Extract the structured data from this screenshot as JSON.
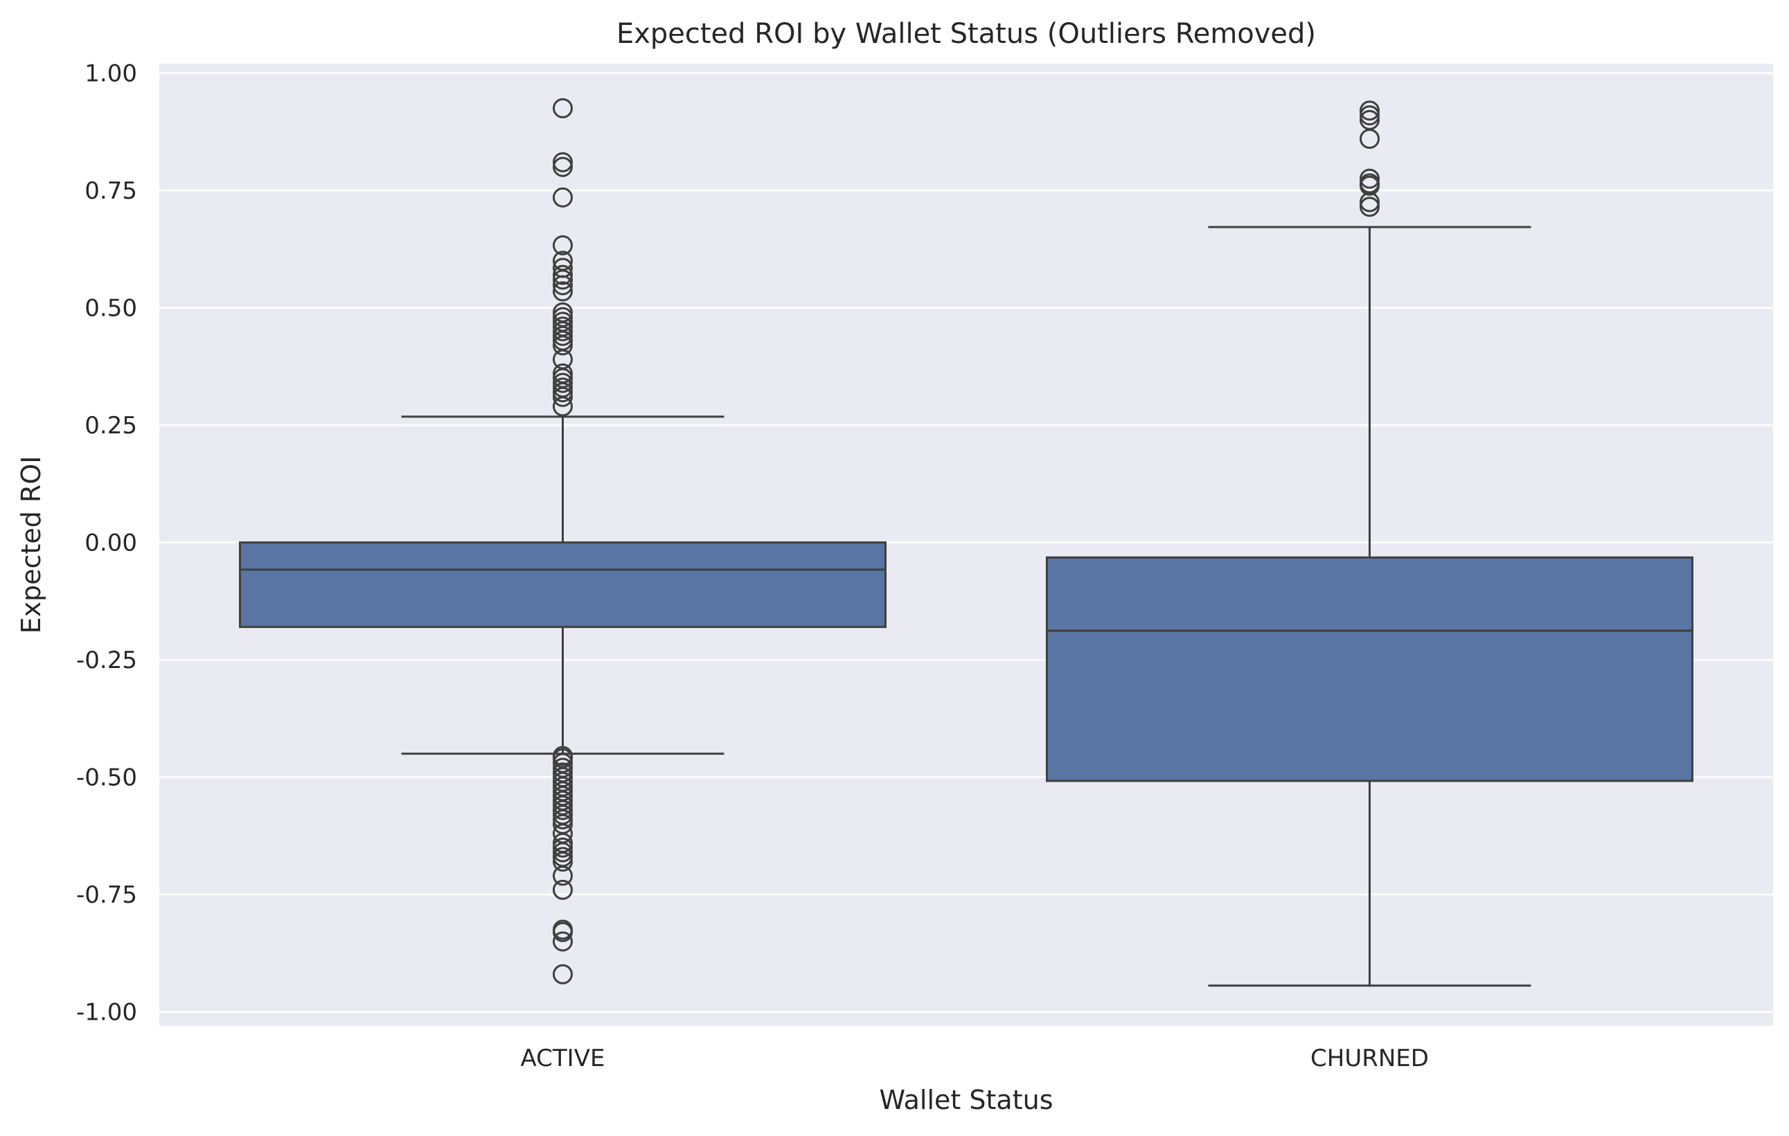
{
  "chart_data": {
    "type": "box",
    "title": "Expected ROI by Wallet Status (Outliers Removed)",
    "xlabel": "Wallet Status",
    "ylabel": "Expected ROI",
    "ylim": [
      -1.03,
      1.02
    ],
    "yticks": [
      1.0,
      0.75,
      0.5,
      0.25,
      0.0,
      -0.25,
      -0.5,
      -0.75,
      -1.0
    ],
    "ytick_labels": [
      "1.00",
      "0.75",
      "0.50",
      "0.25",
      "0.00",
      "-0.25",
      "-0.50",
      "-0.75",
      "-1.00"
    ],
    "grid": true,
    "categories": [
      "ACTIVE",
      "CHURNED"
    ],
    "boxes": [
      {
        "category": "ACTIVE",
        "whisker_low": -0.45,
        "q1": -0.18,
        "median": -0.058,
        "q3": 0.0,
        "whisker_high": 0.268,
        "outliers": [
          0.925,
          0.81,
          0.8,
          0.735,
          0.633,
          0.6,
          0.585,
          0.57,
          0.56,
          0.548,
          0.535,
          0.49,
          0.48,
          0.47,
          0.46,
          0.45,
          0.44,
          0.43,
          0.42,
          0.39,
          0.36,
          0.35,
          0.34,
          0.33,
          0.32,
          0.31,
          0.29,
          -0.455,
          -0.46,
          -0.47,
          -0.48,
          -0.49,
          -0.5,
          -0.51,
          -0.52,
          -0.53,
          -0.54,
          -0.55,
          -0.56,
          -0.57,
          -0.58,
          -0.59,
          -0.6,
          -0.62,
          -0.64,
          -0.65,
          -0.66,
          -0.67,
          -0.68,
          -0.71,
          -0.74,
          -0.825,
          -0.83,
          -0.85,
          -0.92
        ]
      },
      {
        "category": "CHURNED",
        "whisker_low": -0.944,
        "q1": -0.508,
        "median": -0.188,
        "q3": -0.032,
        "whisker_high": 0.672,
        "outliers": [
          0.92,
          0.91,
          0.9,
          0.86,
          0.775,
          0.765,
          0.76,
          0.725,
          0.715
        ]
      }
    ],
    "colors": {
      "background": "#eaeaf2",
      "grid": "#ffffff",
      "box_fill": "#5875a4",
      "line": "#3f3f3f",
      "text": "#262626"
    }
  }
}
